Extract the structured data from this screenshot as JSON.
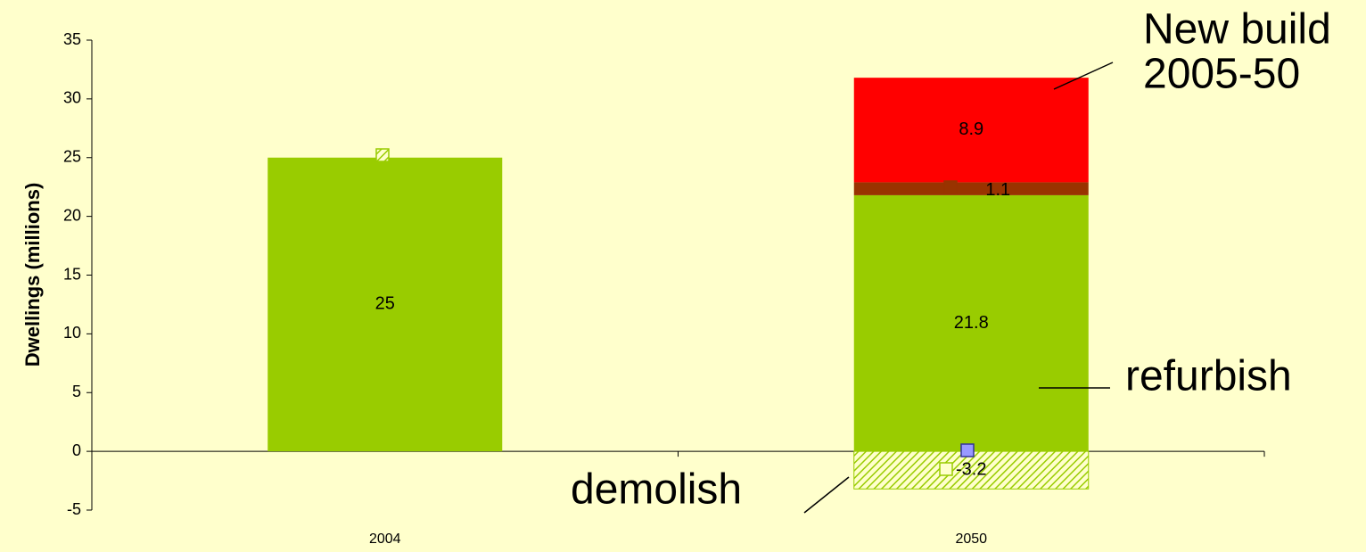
{
  "chart_data": {
    "type": "stacked-bar",
    "y_label": "Dwellings (millions)",
    "categories": [
      "2004",
      "2050"
    ],
    "series": [
      {
        "color": "#99cc00",
        "values": [
          25,
          21.8
        ]
      },
      {
        "color": "#993300",
        "values": [
          null,
          1.1
        ]
      },
      {
        "color": "#ff0000",
        "values": [
          null,
          8.9
        ]
      },
      {
        "color": "#99cc00",
        "pattern": "hatch",
        "values": [
          null,
          -3.2
        ]
      }
    ],
    "ylim": [
      -5,
      35
    ],
    "yticks": [
      -5,
      0,
      5,
      10,
      15,
      20,
      25,
      30,
      35
    ],
    "annotations": [
      {
        "text": [
          "New build",
          "2005-50"
        ]
      },
      {
        "text": [
          "refurbish"
        ]
      },
      {
        "text": [
          "demolish"
        ]
      }
    ]
  }
}
